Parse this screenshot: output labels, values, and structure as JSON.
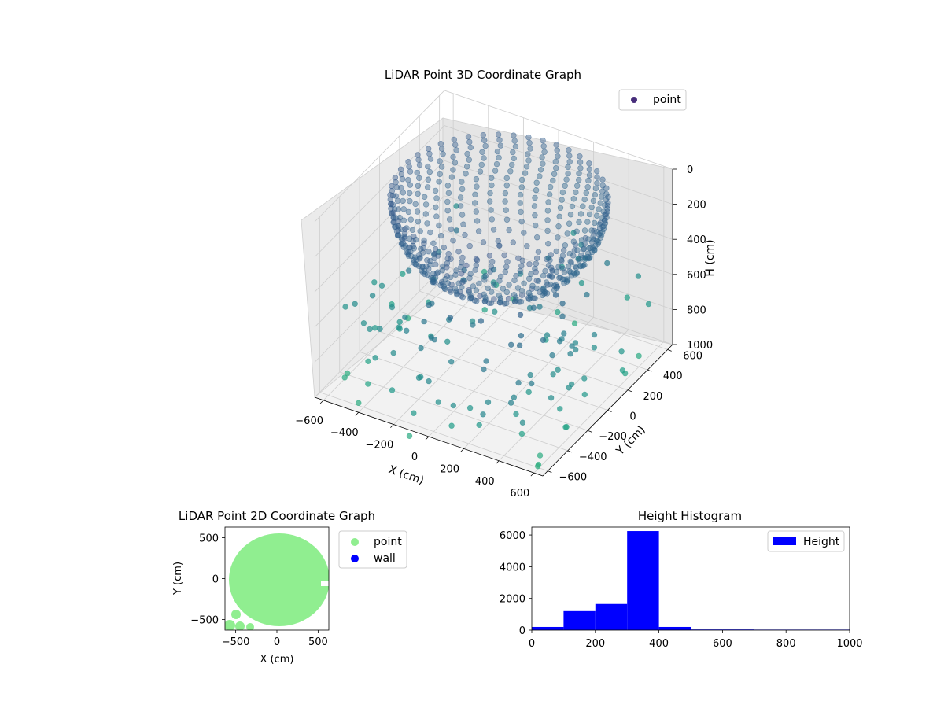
{
  "chart_data": [
    {
      "type": "scatter3d",
      "title": "LiDAR Point 3D Coordinate Graph",
      "xlabel": "X (cm)",
      "ylabel": "Y (cm)",
      "zlabel": "H (cm)",
      "xticks": [
        "−600",
        "−400",
        "−200",
        "0",
        "200",
        "400",
        "600"
      ],
      "yticks": [
        "−600",
        "−400",
        "−200",
        "0",
        "200",
        "400",
        "600"
      ],
      "zticks": [
        "0",
        "200",
        "400",
        "600",
        "800",
        "1000"
      ],
      "xlim": [
        -650,
        650
      ],
      "ylim": [
        -650,
        650
      ],
      "zlim": [
        1000,
        0
      ],
      "z_axis_inverted": true,
      "legend": [
        {
          "label": "point",
          "color": "#472d7b"
        }
      ],
      "legend_position": "top-right",
      "colormap": "viridis",
      "grid": true,
      "description_series": [
        {
          "name": "point",
          "shape": "dense bowl of points, radius ~550 cm, heights ~0-500 cm, plus sparse outliers down to ~1000 cm"
        }
      ]
    },
    {
      "type": "scatter",
      "title": "LiDAR Point 2D Coordinate Graph",
      "xlabel": "X (cm)",
      "ylabel": "Y (cm)",
      "xticks": [
        "−500",
        "0",
        "500"
      ],
      "yticks": [
        "−500",
        "0",
        "500"
      ],
      "xlim": [
        -630,
        630
      ],
      "ylim": [
        -630,
        630
      ],
      "legend": [
        {
          "label": "point",
          "color": "#90ee90"
        },
        {
          "label": "wall",
          "color": "#0000ff"
        }
      ],
      "legend_position": "outside-right",
      "series": [
        {
          "name": "point",
          "color": "#90ee90",
          "extent": {
            "x": [
              -600,
              640
            ],
            "y": [
              -640,
              570
            ]
          }
        },
        {
          "name": "wall",
          "color": "#0000ff",
          "values": []
        }
      ]
    },
    {
      "type": "bar",
      "title": "Height Histogram",
      "xlabel": "",
      "ylabel": "",
      "xticks": [
        "0",
        "200",
        "400",
        "600",
        "800",
        "1000"
      ],
      "yticks": [
        "0",
        "2000",
        "4000",
        "6000"
      ],
      "xlim": [
        0,
        1000
      ],
      "ylim": [
        0,
        6500
      ],
      "legend": [
        {
          "label": "Height",
          "color": "#0000ff"
        }
      ],
      "legend_position": "top-right",
      "bin_edges": [
        0,
        100,
        200,
        300,
        400,
        500,
        600,
        700,
        800,
        900,
        1000
      ],
      "series": [
        {
          "name": "Height",
          "color": "#0000ff",
          "values": [
            200,
            1200,
            1650,
            6250,
            200,
            40,
            40,
            30,
            30,
            30
          ]
        }
      ]
    }
  ]
}
